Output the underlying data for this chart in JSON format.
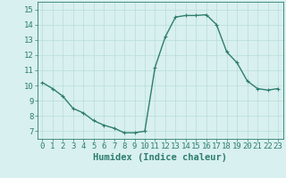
{
  "x": [
    0,
    1,
    2,
    3,
    4,
    5,
    6,
    7,
    8,
    9,
    10,
    11,
    12,
    13,
    14,
    15,
    16,
    17,
    18,
    19,
    20,
    21,
    22,
    23
  ],
  "y": [
    10.2,
    9.8,
    9.3,
    8.5,
    8.2,
    7.7,
    7.4,
    7.2,
    6.9,
    6.9,
    7.0,
    11.2,
    13.2,
    14.5,
    14.6,
    14.6,
    14.65,
    14.0,
    12.2,
    11.5,
    10.3,
    9.8,
    9.7,
    9.8
  ],
  "line_color": "#2e7d6e",
  "marker": "+",
  "marker_size": 3,
  "bg_color": "#d8f0ef",
  "grid_color": "#b8dcd8",
  "xlabel": "Humidex (Indice chaleur)",
  "xlabel_fontsize": 7.5,
  "ylim": [
    6.5,
    15.5
  ],
  "xlim": [
    -0.5,
    23.5
  ],
  "yticks": [
    7,
    8,
    9,
    10,
    11,
    12,
    13,
    14,
    15
  ],
  "xticks": [
    0,
    1,
    2,
    3,
    4,
    5,
    6,
    7,
    8,
    9,
    10,
    11,
    12,
    13,
    14,
    15,
    16,
    17,
    18,
    19,
    20,
    21,
    22,
    23
  ],
  "tick_fontsize": 6.5,
  "linewidth": 1.0
}
